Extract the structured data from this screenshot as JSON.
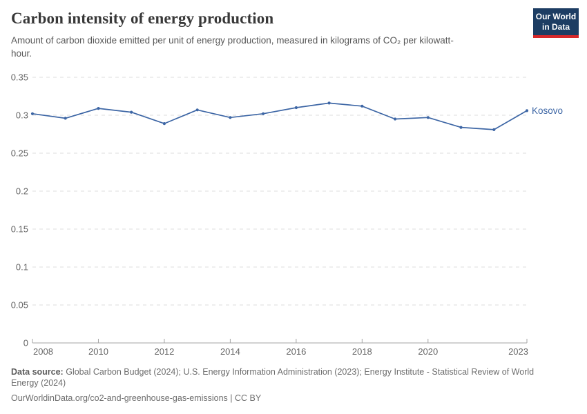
{
  "header": {
    "title": "Carbon intensity of energy production",
    "subtitle": "Amount of carbon dioxide emitted per unit of energy production, measured in kilograms of CO₂ per kilowatt-hour."
  },
  "logo": {
    "line1": "Our World",
    "line2": "in Data",
    "bg_color": "#1d3d63",
    "accent_color": "#d7282a"
  },
  "chart_data": {
    "type": "line",
    "title": "Carbon intensity of energy production",
    "xlabel": "",
    "ylabel": "",
    "x": [
      2008,
      2009,
      2010,
      2011,
      2012,
      2013,
      2014,
      2015,
      2016,
      2017,
      2018,
      2019,
      2020,
      2021,
      2022,
      2023
    ],
    "series": [
      {
        "name": "Kosovo",
        "color": "#3d66a5",
        "values": [
          0.302,
          0.296,
          0.309,
          0.304,
          0.289,
          0.307,
          0.297,
          0.302,
          0.31,
          0.316,
          0.312,
          0.295,
          0.297,
          0.284,
          0.281,
          0.306
        ]
      }
    ],
    "ylim": [
      0,
      0.35
    ],
    "yticks": [
      0,
      0.05,
      0.1,
      0.15,
      0.2,
      0.25,
      0.3,
      0.35
    ],
    "xticks": [
      2008,
      2010,
      2012,
      2014,
      2016,
      2018,
      2020,
      2023
    ],
    "grid": true,
    "gridline_color": "#dcdcdc",
    "axis_color": "#a3a3a3",
    "tick_label_color": "#666666",
    "legend_position": "end-of-line"
  },
  "footer": {
    "datasource_label": "Data source:",
    "datasource_text": "Global Carbon Budget (2024); U.S. Energy Information Administration (2023); Energy Institute - Statistical Review of World Energy (2024)",
    "url_line": "OurWorldinData.org/co2-and-greenhouse-gas-emissions | CC BY"
  }
}
